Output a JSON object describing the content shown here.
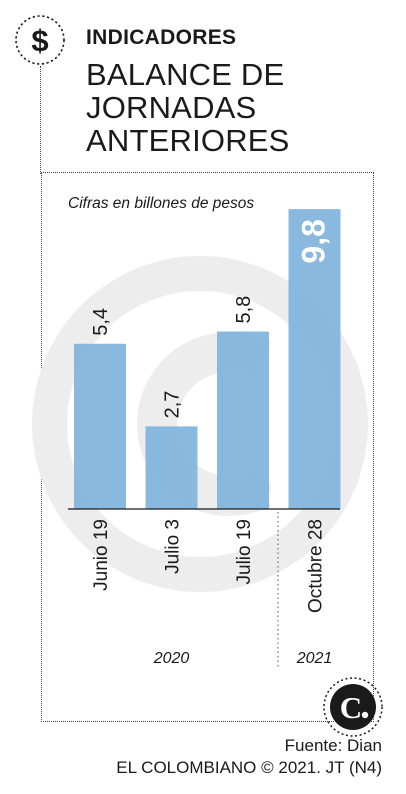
{
  "header": {
    "icon": "dollar-icon",
    "section": "INDICADORES",
    "headline_lines": [
      "BALANCE DE",
      "JORNADAS",
      "ANTERIORES"
    ]
  },
  "footer": {
    "source": "Fuente: Dian",
    "credit": "EL COLOMBIANO © 2021. JT (N4)",
    "logo": "C."
  },
  "colors": {
    "bar": "#80b3dc",
    "watermark": "#ededed",
    "text": "#1a1a1a"
  },
  "chart_data": {
    "type": "bar",
    "subtitle": "Cifras en billones de pesos",
    "categories": [
      "Junio 19",
      "Julio 3",
      "Julio 19",
      "Octubre 28"
    ],
    "values": [
      5.4,
      2.7,
      5.8,
      9.8
    ],
    "value_labels": [
      "5,4",
      "2,7",
      "5,8",
      "9,8"
    ],
    "year_groups": [
      {
        "label": "2020",
        "categories": [
          "Junio 19",
          "Julio 3",
          "Julio 19"
        ]
      },
      {
        "label": "2021",
        "categories": [
          "Octubre 28"
        ]
      }
    ],
    "ylim": [
      0,
      10
    ],
    "grid": false,
    "legend": "none"
  }
}
